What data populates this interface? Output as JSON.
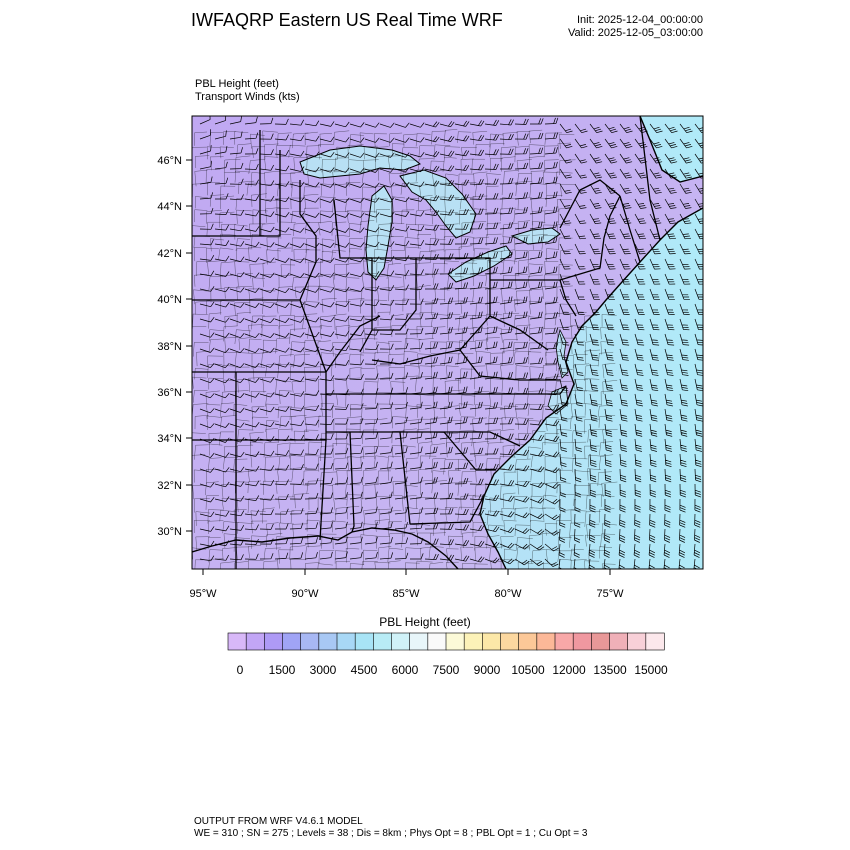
{
  "header": {
    "title": "IWFAQRP Eastern US Real Time WRF",
    "init": "Init: 2025-12-04_00:00:00",
    "valid": "Valid: 2025-12-05_03:00:00"
  },
  "fields": {
    "shaded": "PBL Height   (feet)",
    "vectors": "Transport Winds   (kts)"
  },
  "map": {
    "lat_ticks": [
      "30°N",
      "32°N",
      "34°N",
      "36°N",
      "38°N",
      "40°N",
      "42°N",
      "44°N",
      "46°N"
    ],
    "lon_ticks": [
      "95°W",
      "90°W",
      "85°W",
      "80°W",
      "75°W"
    ],
    "colors": {
      "land": "#c4b0f2",
      "water": "#b8e0f4",
      "ocean_far": "#b0eaf8",
      "state_lines": "#000000"
    }
  },
  "colorbar": {
    "title": "PBL Height  (feet)",
    "labels": [
      "0",
      "1500",
      "3000",
      "4500",
      "6000",
      "7500",
      "9000",
      "10500",
      "12000",
      "13500",
      "15000"
    ],
    "colors": [
      "#d8b8f8",
      "#c2a6f6",
      "#ae9af6",
      "#a0a4f6",
      "#a8b8f4",
      "#a8c8f4",
      "#a8d8f6",
      "#a8e4f6",
      "#b8ecf6",
      "#d0f2f8",
      "#e8f6fa",
      "#fafafa",
      "#fcfad8",
      "#fcf2b8",
      "#fce8a8",
      "#fcd8a0",
      "#fcc898",
      "#fcb898",
      "#f8a8a8",
      "#f098a0",
      "#e89898",
      "#f0b0b8",
      "#f8d0d8",
      "#fce8ec"
    ]
  },
  "footer": {
    "line1": "OUTPUT FROM WRF V4.6.1 MODEL",
    "line2": "WE = 310 ; SN = 275 ; Levels = 38 ; Dis = 8km ; Phys Opt = 8 ; PBL Opt = 1 ; Cu Opt = 3"
  }
}
